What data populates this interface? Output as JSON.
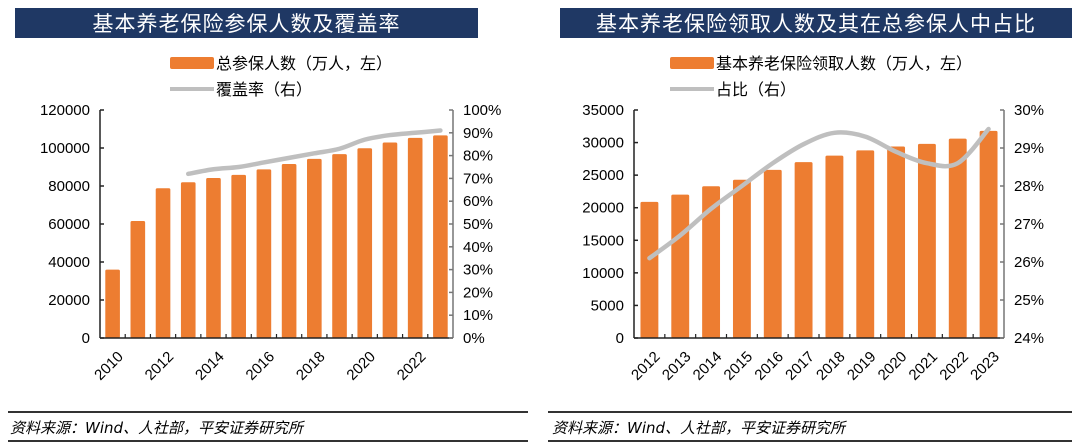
{
  "chart_data": [
    {
      "type": "bar+line",
      "title": "基本养老保险参保人数及覆盖率",
      "x": [
        "2010",
        "2011",
        "2012",
        "2013",
        "2014",
        "2015",
        "2016",
        "2017",
        "2018",
        "2019",
        "2020",
        "2021",
        "2022",
        "2023"
      ],
      "x_tick_labels": [
        "2010",
        "2012",
        "2014",
        "2016",
        "2018",
        "2020",
        "2022"
      ],
      "series": [
        {
          "name": "总参保人数（万人，左）",
          "type": "bar",
          "axis": "left",
          "values": [
            35984,
            61573,
            78796,
            81968,
            84232,
            85833,
            88777,
            91548,
            94293,
            96754,
            99865,
            102871,
            105307,
            106643
          ]
        },
        {
          "name": "覆盖率（右）",
          "type": "line",
          "axis": "right",
          "values": [
            null,
            null,
            null,
            72,
            74,
            75,
            77,
            79,
            81,
            83,
            87,
            89,
            90,
            91
          ]
        }
      ],
      "ylim_left": [
        0,
        120000
      ],
      "yticks_left": [
        "0",
        "20000",
        "40000",
        "60000",
        "80000",
        "100000",
        "120000"
      ],
      "ylim_right": [
        0,
        100
      ],
      "yticks_right": [
        "0%",
        "10%",
        "20%",
        "30%",
        "40%",
        "50%",
        "60%",
        "70%",
        "80%",
        "90%",
        "100%"
      ],
      "legend": [
        "总参保人数（万人，左）",
        "覆盖率（右）"
      ],
      "legend_position": "top-center",
      "grid": false
    },
    {
      "type": "bar+line",
      "title": "基本养老保险领取人数及其在总参保人中占比",
      "x": [
        "2012",
        "2013",
        "2014",
        "2015",
        "2016",
        "2017",
        "2018",
        "2019",
        "2020",
        "2021",
        "2022",
        "2023"
      ],
      "x_tick_labels": [
        "2012",
        "2013",
        "2014",
        "2015",
        "2016",
        "2017",
        "2018",
        "2019",
        "2020",
        "2021",
        "2022",
        "2023"
      ],
      "series": [
        {
          "name": "基本养老保险领取人数（万人，左）",
          "type": "bar",
          "axis": "left",
          "values": [
            20900,
            22000,
            23300,
            24300,
            25800,
            27000,
            28000,
            28800,
            29400,
            29800,
            30600,
            31800
          ]
        },
        {
          "name": "占比（右）",
          "type": "line",
          "axis": "right",
          "values": [
            26.1,
            26.7,
            27.4,
            28.0,
            28.6,
            29.1,
            29.4,
            29.3,
            28.9,
            28.6,
            28.6,
            29.5
          ]
        }
      ],
      "ylim_left": [
        0,
        35000
      ],
      "yticks_left": [
        "0",
        "5000",
        "10000",
        "15000",
        "20000",
        "25000",
        "30000",
        "35000"
      ],
      "ylim_right": [
        24,
        30
      ],
      "yticks_right": [
        "24%",
        "25%",
        "26%",
        "27%",
        "28%",
        "29%",
        "30%"
      ],
      "legend": [
        "基本养老保险领取人数（万人，左）",
        "占比（右）"
      ],
      "legend_position": "top-center",
      "grid": false
    }
  ],
  "colors": {
    "bar": "#ed7d31",
    "line": "#bfbfbf",
    "title_bg": "#1f3864"
  },
  "source": {
    "left": "资料来源：Wind、人社部，平安证券研究所",
    "right": "资料来源：Wind、人社部，平安证券研究所"
  }
}
